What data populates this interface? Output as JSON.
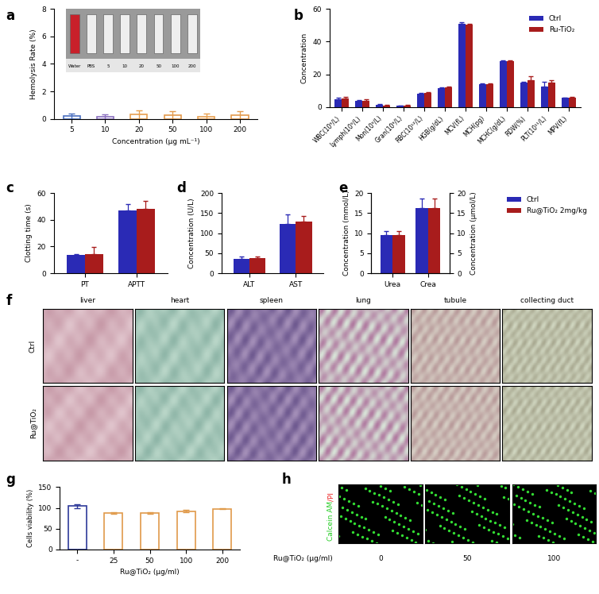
{
  "chart_data": [
    {
      "panel_label": "a",
      "type": "bar",
      "y_label": "Hemolysis Rate (%)",
      "x_label": "Concentration (μg mL⁻¹)",
      "categories": [
        "5",
        "10",
        "20",
        "50",
        "100",
        "200"
      ],
      "values": [
        0.2,
        0.15,
        0.3,
        0.25,
        0.15,
        0.25
      ],
      "errors": [
        0.2,
        0.2,
        0.3,
        0.28,
        0.25,
        0.3
      ],
      "colors": [
        "#4a6fc0",
        "#8a6fbf",
        "#e8a050",
        "#e39a4c",
        "#e8a050",
        "#e39a4c"
      ],
      "ylim": [
        0,
        8
      ],
      "yticks": [
        0,
        2,
        4,
        6,
        8
      ],
      "inset_labels": [
        "Water",
        "PBS",
        "5",
        "10",
        "20",
        "50",
        "100",
        "200"
      ]
    },
    {
      "panel_label": "b",
      "type": "grouped_bar",
      "y_label": "Concentration",
      "categories": [
        "WBC(10⁹/L)",
        "Lymph(10⁹/L)",
        "Mon(10⁹/L)",
        "Gran(10⁹/L)",
        "RBC(10¹²/L)",
        "HGB(g/dL)",
        "MCV(fL)",
        "MCH(pg)",
        "MCHC(g/dL)",
        "RDW(%)",
        "PLT(10¹¹/L)",
        "MPV(fL)"
      ],
      "series": [
        {
          "name": "Ctrl",
          "color": "#2a2ab5",
          "values": [
            4.5,
            3.5,
            1.2,
            0.7,
            8,
            11.5,
            51,
            14,
            28,
            15,
            12.5,
            5.5
          ],
          "errors": [
            1,
            0.8,
            0.5,
            0.3,
            0.5,
            0.5,
            1,
            0.3,
            0.5,
            0.5,
            3,
            0.3
          ]
        },
        {
          "name": "Ru-TiO₂",
          "color": "#a81c1c",
          "values": [
            5,
            3.8,
            1.0,
            0.8,
            8.5,
            12,
            50.5,
            14,
            28,
            16.5,
            15,
            5.8
          ],
          "errors": [
            1,
            0.8,
            0.4,
            0.3,
            0.5,
            0.5,
            0.5,
            0.3,
            0.5,
            2.5,
            1.5,
            0.4
          ]
        }
      ],
      "ylim": [
        0,
        60
      ],
      "yticks": [
        0,
        20,
        40,
        60
      ],
      "legend": "upper right"
    },
    {
      "panel_label": "c",
      "type": "grouped_bar",
      "y_label": "Clotting time (s)",
      "categories": [
        "PT",
        "APTT"
      ],
      "series": [
        {
          "name": "Ctrl",
          "color": "#2a2ab5",
          "values": [
            13.5,
            47
          ],
          "errors": [
            0.8,
            5
          ]
        },
        {
          "name": "Ru@TiO₂ 2mg/kg",
          "color": "#a81c1c",
          "values": [
            14.5,
            48
          ],
          "errors": [
            5,
            6
          ]
        }
      ],
      "ylim": [
        0,
        60
      ],
      "yticks": [
        0,
        20,
        40,
        60
      ]
    },
    {
      "panel_label": "d",
      "type": "grouped_bar",
      "y_label": "Concentration (U/L)",
      "categories": [
        "ALT",
        "AST"
      ],
      "series": [
        {
          "name": "Ctrl",
          "color": "#2a2ab5",
          "values": [
            36,
            123
          ],
          "errors": [
            6,
            24
          ]
        },
        {
          "name": "Ru@TiO₂ 2mg/kg",
          "color": "#a81c1c",
          "values": [
            37,
            128
          ],
          "errors": [
            4,
            14
          ]
        }
      ],
      "ylim": [
        0,
        200
      ],
      "yticks": [
        0,
        50,
        100,
        150,
        200
      ]
    },
    {
      "panel_label": "e",
      "type": "grouped_bar",
      "y_label": "Concentration (mmol/L)",
      "y2_label": "Concentration (μmol/L)",
      "categories": [
        "Urea",
        "Crea"
      ],
      "series": [
        {
          "name": "Ctrl",
          "color": "#2a2ab5",
          "values": [
            9.6,
            null
          ],
          "errors": [
            1.0,
            null
          ]
        },
        {
          "name": "Ru@TiO₂ 2mg/kg",
          "color": "#a81c1c",
          "values": [
            9.6,
            null
          ],
          "errors": [
            1.0,
            null
          ]
        },
        {
          "name": "Ctrl",
          "color": "#2a2ab5",
          "axis": "y2",
          "values": [
            null,
            16.3
          ],
          "errors": [
            null,
            2.3
          ]
        },
        {
          "name": "Ru@TiO₂ 2mg/kg",
          "color": "#a81c1c",
          "axis": "y2",
          "values": [
            null,
            16.3
          ],
          "errors": [
            null,
            2.3
          ]
        }
      ],
      "ylim": [
        0,
        20
      ],
      "yticks": [
        0,
        5,
        10,
        15,
        20
      ],
      "y2lim": [
        0,
        20
      ],
      "y2ticks": [
        0,
        5,
        10,
        15,
        20
      ],
      "legend": "upper left"
    },
    {
      "panel_label": "g",
      "type": "bar",
      "y_label": "Cells viability (%)",
      "x_label": "Ru@TiO₂ (μg/ml)",
      "categories": [
        "-",
        "25",
        "50",
        "100",
        "200"
      ],
      "values": [
        104,
        87,
        88,
        92,
        98
      ],
      "errors": [
        4,
        2,
        2,
        3,
        1.5
      ],
      "colors": [
        "#2e3a9a",
        "#e09a4a",
        "#e09a4a",
        "#e09a4a",
        "#e09a4a"
      ],
      "ylim": [
        0,
        150
      ],
      "yticks": [
        0,
        50,
        100,
        150
      ]
    }
  ],
  "image_panels": {
    "f": {
      "panel_label": "f",
      "columns": [
        "liver",
        "heart",
        "spleen",
        "lung",
        "tubule",
        "collecting duct"
      ],
      "rows": [
        "Ctrl",
        "Ru@TiO₂"
      ]
    },
    "h": {
      "panel_label": "h",
      "stain_label": [
        "Calcein AM",
        "/PI"
      ],
      "stain_colors": [
        "#22cc22",
        "#ee2222"
      ],
      "x_label": "Ru@TiO₂ (μg/ml)",
      "columns": [
        "0",
        "50",
        "100"
      ]
    }
  }
}
